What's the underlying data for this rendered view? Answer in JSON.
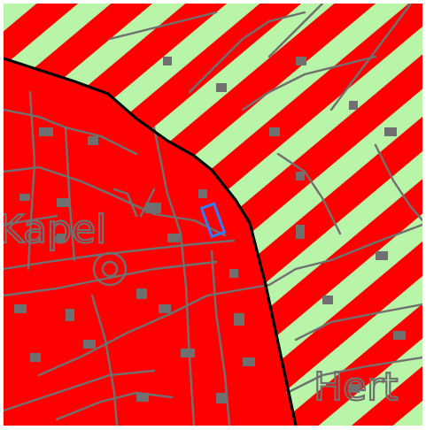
{
  "map": {
    "labels": {
      "place_left": "Kapel",
      "place_right": "Hert"
    },
    "colors": {
      "zone_fill": "#ff0000",
      "hatch_stripe": "#b8f5a8",
      "topography": "#707070",
      "boundary": "#000000",
      "selection_outline": "#2a7fff",
      "page_background": "#ffffff"
    }
  }
}
